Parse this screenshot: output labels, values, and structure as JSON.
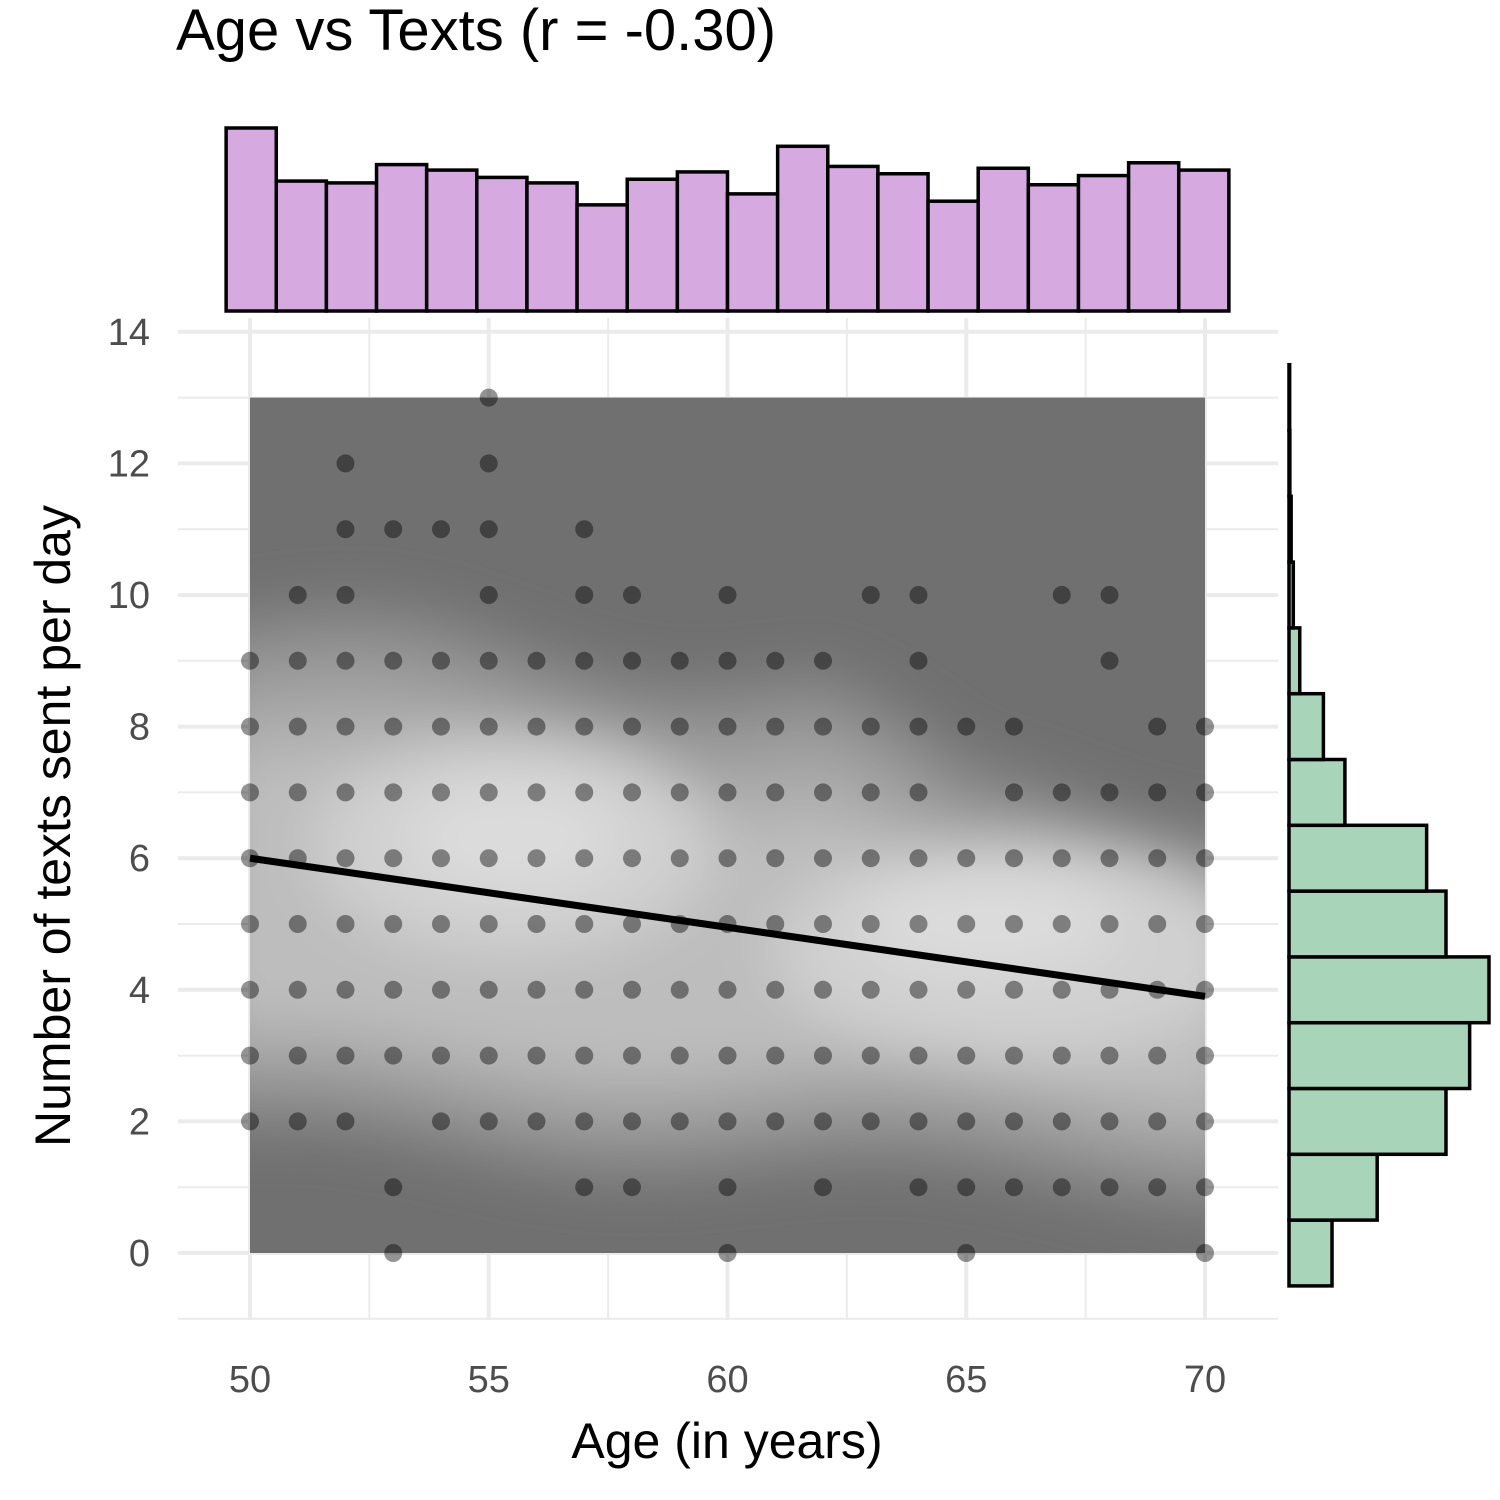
{
  "chart_data": {
    "type": "scatter",
    "title": "Age vs Texts (r = -0.30)",
    "xlabel": "Age (in years)",
    "ylabel": "Number of texts sent per day",
    "xlim": [
      48.5,
      71.5
    ],
    "ylim": [
      -1,
      14
    ],
    "x_ticks": [
      "50",
      "55",
      "60",
      "65",
      "70"
    ],
    "y_ticks": [
      "0",
      "2",
      "4",
      "6",
      "8",
      "10",
      "12",
      "14"
    ],
    "grid": true,
    "density_contours": true,
    "regression_line": {
      "x": [
        50,
        70
      ],
      "y": [
        6.0,
        3.9
      ]
    },
    "points": [
      [
        55,
        13
      ],
      [
        52,
        12
      ],
      [
        55,
        12
      ],
      [
        52,
        11
      ],
      [
        53,
        11
      ],
      [
        54,
        11
      ],
      [
        55,
        11
      ],
      [
        57,
        11
      ],
      [
        51,
        10
      ],
      [
        52,
        10
      ],
      [
        55,
        10
      ],
      [
        57,
        10
      ],
      [
        58,
        10
      ],
      [
        60,
        10
      ],
      [
        63,
        10
      ],
      [
        64,
        10
      ],
      [
        67,
        10
      ],
      [
        68,
        10
      ],
      [
        50,
        9
      ],
      [
        51,
        9
      ],
      [
        52,
        9
      ],
      [
        53,
        9
      ],
      [
        54,
        9
      ],
      [
        55,
        9
      ],
      [
        56,
        9
      ],
      [
        57,
        9
      ],
      [
        58,
        9
      ],
      [
        59,
        9
      ],
      [
        60,
        9
      ],
      [
        61,
        9
      ],
      [
        62,
        9
      ],
      [
        64,
        9
      ],
      [
        68,
        9
      ],
      [
        50,
        8
      ],
      [
        51,
        8
      ],
      [
        52,
        8
      ],
      [
        53,
        8
      ],
      [
        54,
        8
      ],
      [
        55,
        8
      ],
      [
        56,
        8
      ],
      [
        57,
        8
      ],
      [
        58,
        8
      ],
      [
        59,
        8
      ],
      [
        60,
        8
      ],
      [
        61,
        8
      ],
      [
        62,
        8
      ],
      [
        63,
        8
      ],
      [
        64,
        8
      ],
      [
        65,
        8
      ],
      [
        66,
        8
      ],
      [
        69,
        8
      ],
      [
        70,
        8
      ],
      [
        50,
        7
      ],
      [
        51,
        7
      ],
      [
        52,
        7
      ],
      [
        53,
        7
      ],
      [
        54,
        7
      ],
      [
        55,
        7
      ],
      [
        56,
        7
      ],
      [
        57,
        7
      ],
      [
        58,
        7
      ],
      [
        59,
        7
      ],
      [
        60,
        7
      ],
      [
        61,
        7
      ],
      [
        62,
        7
      ],
      [
        63,
        7
      ],
      [
        64,
        7
      ],
      [
        66,
        7
      ],
      [
        67,
        7
      ],
      [
        68,
        7
      ],
      [
        69,
        7
      ],
      [
        70,
        7
      ],
      [
        50,
        6
      ],
      [
        51,
        6
      ],
      [
        52,
        6
      ],
      [
        53,
        6
      ],
      [
        54,
        6
      ],
      [
        55,
        6
      ],
      [
        56,
        6
      ],
      [
        57,
        6
      ],
      [
        58,
        6
      ],
      [
        59,
        6
      ],
      [
        60,
        6
      ],
      [
        61,
        6
      ],
      [
        62,
        6
      ],
      [
        63,
        6
      ],
      [
        64,
        6
      ],
      [
        65,
        6
      ],
      [
        66,
        6
      ],
      [
        67,
        6
      ],
      [
        68,
        6
      ],
      [
        69,
        6
      ],
      [
        70,
        6
      ],
      [
        50,
        5
      ],
      [
        51,
        5
      ],
      [
        52,
        5
      ],
      [
        53,
        5
      ],
      [
        54,
        5
      ],
      [
        55,
        5
      ],
      [
        56,
        5
      ],
      [
        57,
        5
      ],
      [
        58,
        5
      ],
      [
        59,
        5
      ],
      [
        60,
        5
      ],
      [
        61,
        5
      ],
      [
        62,
        5
      ],
      [
        63,
        5
      ],
      [
        64,
        5
      ],
      [
        65,
        5
      ],
      [
        66,
        5
      ],
      [
        67,
        5
      ],
      [
        68,
        5
      ],
      [
        69,
        5
      ],
      [
        70,
        5
      ],
      [
        50,
        4
      ],
      [
        51,
        4
      ],
      [
        52,
        4
      ],
      [
        53,
        4
      ],
      [
        54,
        4
      ],
      [
        55,
        4
      ],
      [
        56,
        4
      ],
      [
        57,
        4
      ],
      [
        58,
        4
      ],
      [
        59,
        4
      ],
      [
        60,
        4
      ],
      [
        61,
        4
      ],
      [
        62,
        4
      ],
      [
        63,
        4
      ],
      [
        64,
        4
      ],
      [
        65,
        4
      ],
      [
        66,
        4
      ],
      [
        67,
        4
      ],
      [
        68,
        4
      ],
      [
        69,
        4
      ],
      [
        70,
        4
      ],
      [
        50,
        3
      ],
      [
        51,
        3
      ],
      [
        52,
        3
      ],
      [
        53,
        3
      ],
      [
        54,
        3
      ],
      [
        55,
        3
      ],
      [
        56,
        3
      ],
      [
        57,
        3
      ],
      [
        58,
        3
      ],
      [
        59,
        3
      ],
      [
        60,
        3
      ],
      [
        61,
        3
      ],
      [
        62,
        3
      ],
      [
        63,
        3
      ],
      [
        64,
        3
      ],
      [
        65,
        3
      ],
      [
        66,
        3
      ],
      [
        67,
        3
      ],
      [
        68,
        3
      ],
      [
        69,
        3
      ],
      [
        70,
        3
      ],
      [
        50,
        2
      ],
      [
        51,
        2
      ],
      [
        52,
        2
      ],
      [
        54,
        2
      ],
      [
        55,
        2
      ],
      [
        56,
        2
      ],
      [
        57,
        2
      ],
      [
        58,
        2
      ],
      [
        59,
        2
      ],
      [
        60,
        2
      ],
      [
        61,
        2
      ],
      [
        62,
        2
      ],
      [
        63,
        2
      ],
      [
        64,
        2
      ],
      [
        65,
        2
      ],
      [
        66,
        2
      ],
      [
        67,
        2
      ],
      [
        68,
        2
      ],
      [
        69,
        2
      ],
      [
        70,
        2
      ],
      [
        53,
        1
      ],
      [
        57,
        1
      ],
      [
        58,
        1
      ],
      [
        60,
        1
      ],
      [
        62,
        1
      ],
      [
        64,
        1
      ],
      [
        65,
        1
      ],
      [
        66,
        1
      ],
      [
        67,
        1
      ],
      [
        68,
        1
      ],
      [
        69,
        1
      ],
      [
        70,
        1
      ],
      [
        53,
        0
      ],
      [
        60,
        0
      ],
      [
        65,
        0
      ],
      [
        70,
        0
      ]
    ],
    "marginal_x_histogram": {
      "bin_start": 49.5,
      "bin_width": 1.05,
      "counts": [
        100,
        71,
        70,
        80,
        77,
        73,
        70,
        58,
        72,
        76,
        64,
        90,
        79,
        75,
        60,
        78,
        69,
        74,
        81,
        77
      ],
      "fill": "#d6a9e1"
    },
    "marginal_y_histogram": {
      "bin_edges": [
        -0.5,
        0.5,
        1.5,
        2.5,
        3.5,
        4.5,
        5.5,
        6.5,
        7.5,
        8.5,
        9.5,
        10.5,
        11.5,
        12.5,
        13.5
      ],
      "counts": [
        20,
        41,
        73,
        84,
        93,
        73,
        64,
        26,
        16,
        5,
        2,
        1,
        0.4,
        0.3
      ],
      "fill": "#a8d5ba"
    },
    "colors": {
      "panel_background": "#707070",
      "points": "#000000",
      "regression_line": "#000000",
      "grid": "#ebebeb",
      "hist_stroke": "#000000"
    }
  }
}
